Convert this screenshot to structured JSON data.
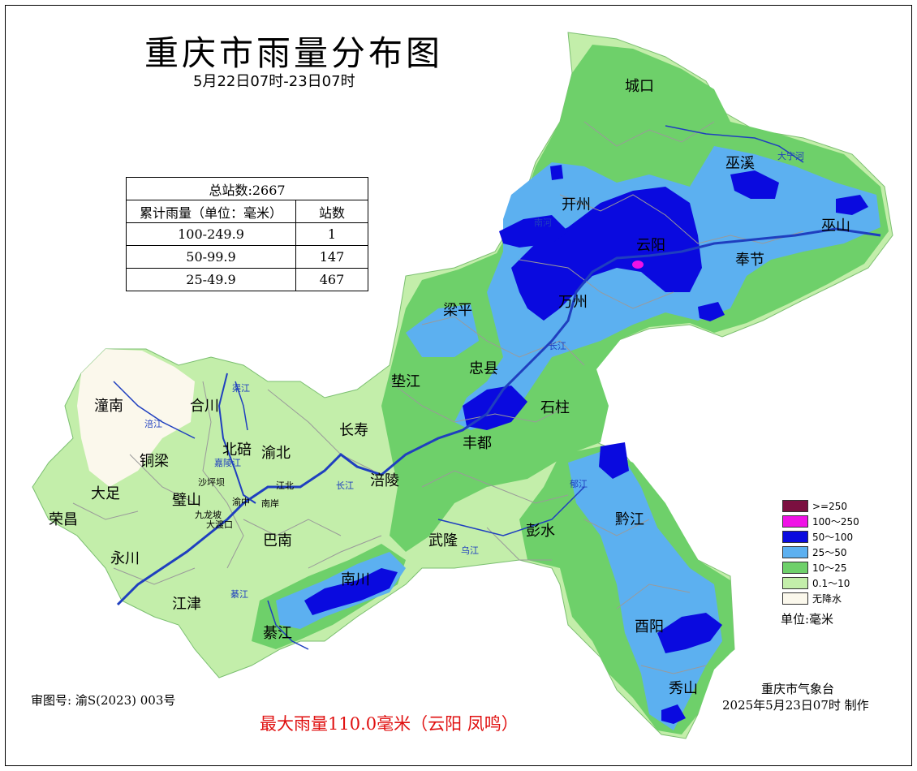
{
  "header": {
    "title": "重庆市雨量分布图",
    "period": "5月22日07时-23日07时"
  },
  "stats_table": {
    "total": "总站数:2667",
    "col1_header": "累计雨量（单位：毫米）",
    "col2_header": "站数",
    "rows": [
      {
        "range": "100-249.9",
        "count": "1"
      },
      {
        "range": "50-99.9",
        "count": "147"
      },
      {
        "range": "25-49.9",
        "count": "467"
      }
    ]
  },
  "legend": {
    "items": [
      {
        "label": ">=250",
        "color": "#7b1040"
      },
      {
        "label": "100～250",
        "color": "#f012e6"
      },
      {
        "label": "50～100",
        "color": "#0a0adf"
      },
      {
        "label": "25～50",
        "color": "#5cb0f0"
      },
      {
        "label": "10～25",
        "color": "#6ed06a"
      },
      {
        "label": "0.1～10",
        "color": "#c3eeaa"
      },
      {
        "label": "无降水",
        "color": "#fbf8ec"
      }
    ],
    "unit": "单位:毫米"
  },
  "places": {
    "chengkou": "城口",
    "wuxi": "巫溪",
    "kaizhou": "开州",
    "yunyang": "云阳",
    "wushan": "巫山",
    "fengjie": "奉节",
    "liangping": "梁平",
    "wanzhou": "万州",
    "zhongxian": "忠县",
    "dianjiang": "垫江",
    "shizhu": "石柱",
    "fengdu": "丰都",
    "changshou": "长寿",
    "fuling": "涪陵",
    "tongnan": "潼南",
    "hechuan": "合川",
    "tongliang": "铜梁",
    "beibei": "北碚",
    "yubei": "渝北",
    "dazu": "大足",
    "bishan": "璧山",
    "rongchang": "荣昌",
    "yongchuan": "永川",
    "banan": "巴南",
    "wulong": "武隆",
    "pengshui": "彭水",
    "qianjiang": "黔江",
    "nanchuan": "南川",
    "jiangjin": "江津",
    "qijiang": "綦江",
    "youyang": "酉阳",
    "xiushan": "秀山",
    "shapingba": "沙坪坝",
    "jiulongpo": "九龙坡",
    "dadukou": "大渡口",
    "jiangbei": "江北",
    "nanan": "南岸",
    "yuzhong": "渝中"
  },
  "rivers": {
    "daning": "大宁河",
    "nanhe": "南河",
    "changjiang_east": "长江",
    "changjiang_mid": "长江",
    "qujiang": "渠江",
    "fujiang": "涪江",
    "jialingjiang": "嘉陵江",
    "wujiang": "乌江",
    "yujiang": "郁江",
    "qijiang_river": "綦江"
  },
  "footer": {
    "approval": "审图号: 渝S(2023) 003号",
    "max_rain": "最大雨量110.0毫米（云阳 凤鸣）",
    "agency": "重庆市气象台",
    "made": "2025年5月23日07时 制作"
  }
}
